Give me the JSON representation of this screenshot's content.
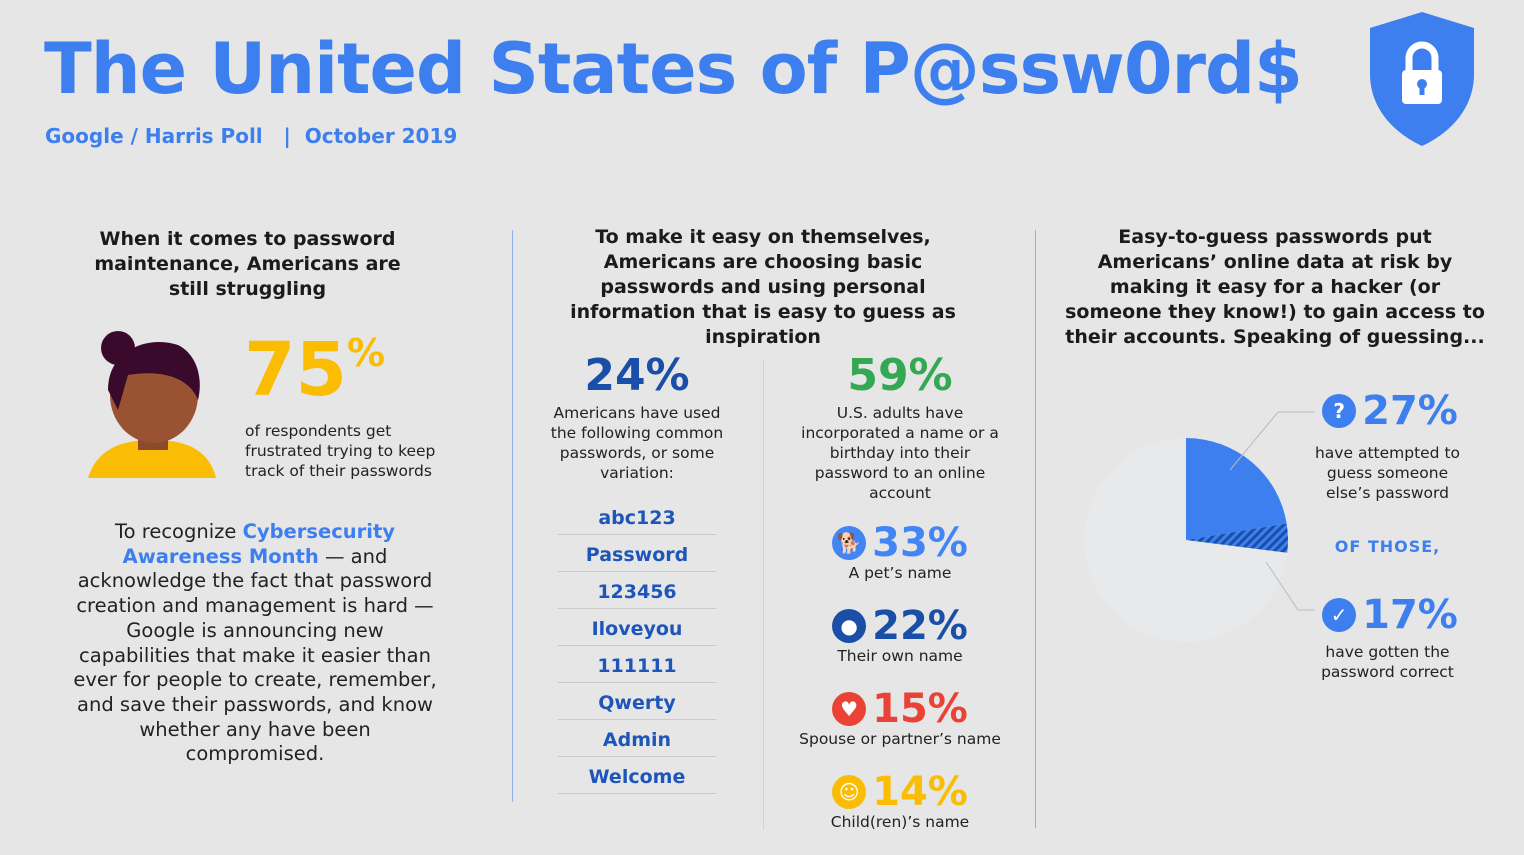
{
  "header": {
    "title": "The United States of P@ssw0rd$",
    "subtitle": "Google / Harris Poll   |  October 2019"
  },
  "col1": {
    "heading": "When it comes to password maintenance, Americans are still struggling",
    "stat": "75",
    "stat_suffix": "%",
    "stat_text": "of respondents get frustrated trying to keep track of their passwords",
    "para_pre": "To recognize ",
    "para_link": "Cybersecurity Awareness Month",
    "para_post": " — and acknowledge the fact that password creation and management is hard — Google is announcing new capabilities that make it easier than ever for people to create, remember, and save their passwords, and know whether any have been compromised."
  },
  "col2": {
    "heading": "To make it easy on themselves, Americans are choosing basic passwords and using personal information that is easy to guess as inspiration",
    "left_stat": "24%",
    "left_text": "Americans have used the following common passwords, or some variation:",
    "passwords": [
      "abc123",
      "Password",
      "123456",
      "Iloveyou",
      "111111",
      "Qwerty",
      "Admin",
      "Welcome"
    ],
    "right_stat": "59%",
    "right_text": "U.S. adults have incorporated a name or a birthday into their password to an online account",
    "items": [
      {
        "value": "33%",
        "label": "A pet’s name",
        "color": "#4285f4",
        "icon": "dog-icon"
      },
      {
        "value": "22%",
        "label": "Their own name",
        "color": "#1a4fa8",
        "icon": "person-icon"
      },
      {
        "value": "15%",
        "label": "Spouse or partner’s name",
        "color": "#ea4335",
        "icon": "heart-icon"
      },
      {
        "value": "14%",
        "label": "Child(ren)’s name",
        "color": "#fbbc04",
        "icon": "child-icon"
      }
    ]
  },
  "col3": {
    "heading": "Easy-to-guess passwords put Americans’ online data at risk by making it easy for a hacker (or someone they know!) to gain access to their accounts. Speaking of guessing...",
    "stat1": "27%",
    "stat1_text": "have attempted to guess someone else’s password",
    "of_those": "OF THOSE,",
    "stat2": "17%",
    "stat2_text": "have gotten the password correct"
  },
  "chart_data": {
    "type": "pie",
    "slices": [
      {
        "name": "attempted to guess",
        "value": 27
      },
      {
        "name": "other",
        "value": 73
      }
    ],
    "nested": {
      "name": "guessed correctly (of those who attempted)",
      "value": 17
    }
  }
}
